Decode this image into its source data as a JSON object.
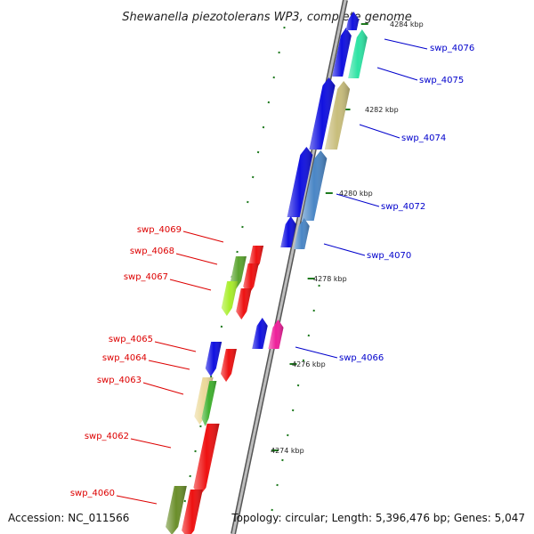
{
  "title": "Shewanella piezotolerans WP3, complete genome",
  "accession": "Accession: NC_011566",
  "topology": "Topology: circular; Length: 5,396,476 bp; Genes: 5,047",
  "colors": {
    "backbone": "#8a8a8a",
    "tick": "#1e7a1e",
    "forward_label": "#0000cc",
    "reverse_label": "#dd0000"
  },
  "ticks": [
    "4274 kbp",
    "4276 kbp",
    "4278 kbp",
    "4280 kbp",
    "4282 kbp",
    "4284 kbp"
  ],
  "forward_genes": [
    {
      "label": "swp_4076",
      "color": "#2de3a3"
    },
    {
      "label": "swp_4075",
      "color": "#1010e0"
    },
    {
      "label": "swp_4074",
      "color": "#c8bd7b"
    },
    {
      "label": "swp_4072",
      "color": "#4a86c6"
    },
    {
      "label": "swp_4070",
      "color": "#4a86c6"
    },
    {
      "label": "swp_4066",
      "color": "#ee1f9a"
    }
  ],
  "forward_unlabeled": [
    {
      "color": "#1010e0"
    },
    {
      "color": "#1010e0"
    },
    {
      "color": "#1010e0"
    },
    {
      "color": "#1010e0"
    },
    {
      "color": "#1010e0"
    }
  ],
  "reverse_genes": [
    {
      "label": "swp_4069",
      "color": "#ee1111"
    },
    {
      "label": "swp_4068",
      "color": "#5aa42e"
    },
    {
      "label": "swp_4067",
      "color": "#a8ee2a"
    },
    {
      "label": "swp_4065",
      "color": "#1010e0"
    },
    {
      "label": "swp_4064",
      "color": "#ee1111"
    },
    {
      "label": "swp_4063",
      "color": "#ecd99a"
    },
    {
      "label": "swp_4062",
      "color": "#ee1111"
    },
    {
      "label": "swp_4060",
      "color": "#6a8e2a"
    }
  ],
  "reverse_unlabeled": [
    {
      "color": "#ee1111"
    },
    {
      "color": "#ee1111"
    },
    {
      "color": "#3fb02e"
    },
    {
      "color": "#ee1111"
    }
  ]
}
